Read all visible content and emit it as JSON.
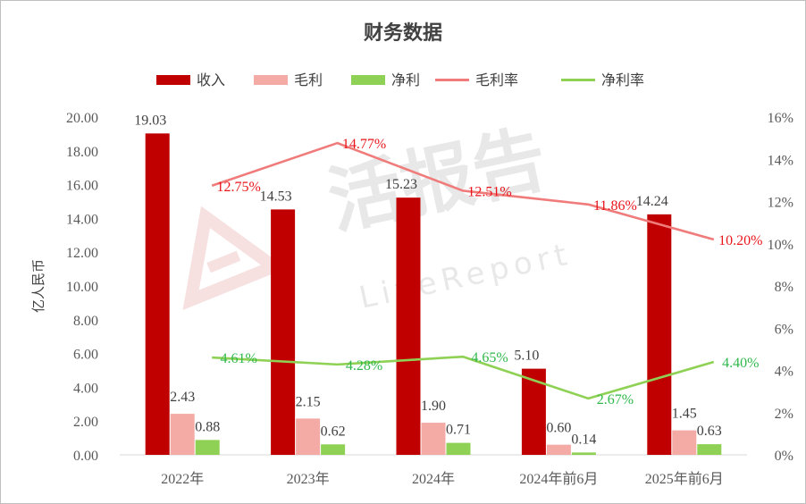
{
  "chart_data": {
    "type": "bar",
    "title": "财务数据",
    "ylabel": "亿人民币",
    "categories": [
      "2022年",
      "2023年",
      "2024年",
      "2024年前6月",
      "2025年前6月"
    ],
    "ylim": [
      0,
      20
    ],
    "y_ticks": [
      "0.00",
      "2.00",
      "4.00",
      "6.00",
      "8.00",
      "10.00",
      "12.00",
      "14.00",
      "16.00",
      "18.00",
      "20.00"
    ],
    "y2lim": [
      0,
      16
    ],
    "y2_ticks": [
      "0%",
      "2%",
      "4%",
      "6%",
      "8%",
      "10%",
      "12%",
      "14%",
      "16%"
    ],
    "legend_position": "top",
    "grid": false,
    "series": [
      {
        "name": "收入",
        "kind": "bar",
        "axis": "left",
        "color": "#c00000",
        "values": [
          19.03,
          14.53,
          15.23,
          5.1,
          14.24
        ],
        "labels": [
          "19.03",
          "14.53",
          "15.23",
          "5.10",
          "14.24"
        ]
      },
      {
        "name": "毛利",
        "kind": "bar",
        "axis": "left",
        "color": "#f4aba5",
        "values": [
          2.43,
          2.15,
          1.9,
          0.6,
          1.45
        ],
        "labels": [
          "2.43",
          "2.15",
          "1.90",
          "0.60",
          "1.45"
        ]
      },
      {
        "name": "净利",
        "kind": "bar",
        "axis": "left",
        "color": "#8fd154",
        "values": [
          0.88,
          0.62,
          0.71,
          0.14,
          0.63
        ],
        "labels": [
          "0.88",
          "0.62",
          "0.71",
          "0.14",
          "0.63"
        ]
      },
      {
        "name": "毛利率",
        "kind": "line",
        "axis": "right",
        "color": "#f07b7b",
        "label_color": "#e8161b",
        "values": [
          12.75,
          14.77,
          12.51,
          11.86,
          10.2
        ],
        "labels": [
          "12.75%",
          "14.77%",
          "12.51%",
          "11.86%",
          "10.20%"
        ]
      },
      {
        "name": "净利率",
        "kind": "line",
        "axis": "right",
        "color": "#8fd154",
        "label_color": "#2fb84a",
        "values": [
          4.61,
          4.28,
          4.65,
          2.67,
          4.4
        ],
        "labels": [
          "4.61%",
          "4.28%",
          "4.65%",
          "2.67%",
          "4.40%"
        ]
      }
    ]
  },
  "watermark": {
    "main": "活报告",
    "sub": "LiveReport"
  }
}
